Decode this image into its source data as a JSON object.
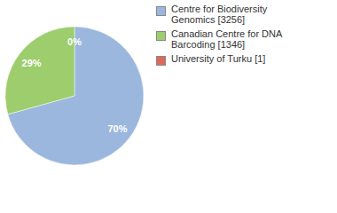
{
  "chart_data": {
    "type": "pie",
    "categories": [
      "Centre for Biodiversity Genomics [3256]",
      "Canadian Centre for DNA Barcoding [1346]",
      "University of Turku [1]"
    ],
    "values": [
      70,
      29,
      0
    ],
    "value_labels": [
      "70%",
      "29%",
      "0%"
    ],
    "colors": [
      "#9bb7de",
      "#9dcd6c",
      "#e0685a"
    ],
    "data_labels": true,
    "legend": "top-right"
  }
}
